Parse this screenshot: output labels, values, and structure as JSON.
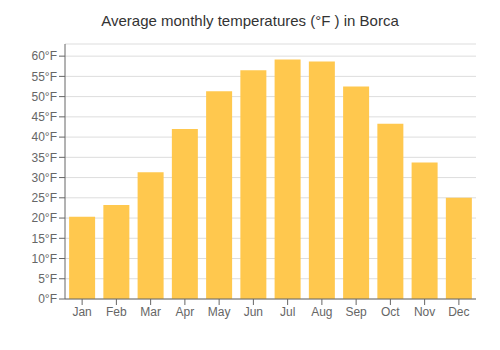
{
  "chart_data": {
    "type": "bar",
    "title": "Average monthly temperatures (°F ) in Borca",
    "categories": [
      "Jan",
      "Feb",
      "Mar",
      "Apr",
      "May",
      "Jun",
      "Jul",
      "Aug",
      "Sep",
      "Oct",
      "Nov",
      "Dec"
    ],
    "values": [
      20.3,
      23.2,
      31.3,
      42.0,
      51.3,
      56.5,
      59.2,
      58.7,
      52.5,
      43.3,
      33.7,
      25.0
    ],
    "color": "#FFC84E",
    "ylim": [
      0,
      63
    ],
    "yticks": [
      {
        "value": 0,
        "label": "0°F"
      },
      {
        "value": 5,
        "label": "5°F"
      },
      {
        "value": 10,
        "label": "10°F"
      },
      {
        "value": 15,
        "label": "15°F"
      },
      {
        "value": 20,
        "label": "20°F"
      },
      {
        "value": 25,
        "label": "25°F"
      },
      {
        "value": 30,
        "label": "30°F"
      },
      {
        "value": 35,
        "label": "35°F"
      },
      {
        "value": 40,
        "label": "40°F"
      },
      {
        "value": 45,
        "label": "45°F"
      },
      {
        "value": 50,
        "label": "50°F"
      },
      {
        "value": 55,
        "label": "55°F"
      },
      {
        "value": 60,
        "label": "60°F"
      }
    ],
    "grid": true
  }
}
